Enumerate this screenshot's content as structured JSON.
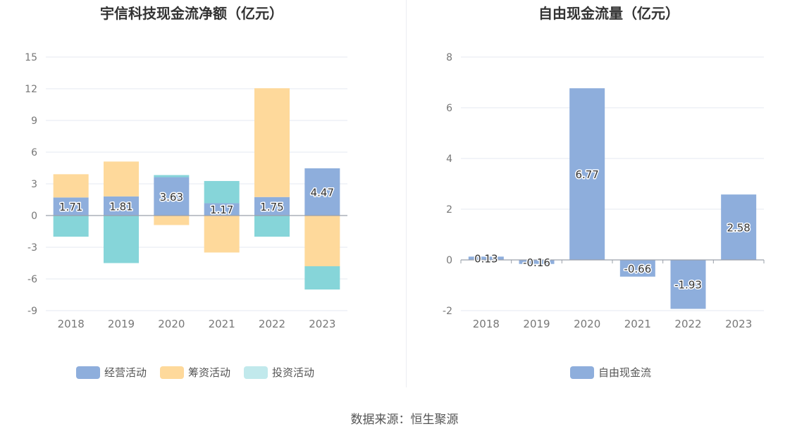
{
  "source": "数据来源：恒生聚源",
  "colors": {
    "operating": "#8eaedc",
    "financing": "#fed99b",
    "investing": "#86d5d9",
    "investing_legend": "#c1e9ec",
    "free": "#8eaedc"
  },
  "chart_data": [
    {
      "type": "bar",
      "stacked": true,
      "title": "宇信科技现金流净额（亿元）",
      "categories": [
        "2018",
        "2019",
        "2020",
        "2021",
        "2022",
        "2023"
      ],
      "ylim": [
        -9,
        15
      ],
      "yticks": [
        -9,
        -6,
        -3,
        0,
        3,
        6,
        9,
        12,
        15
      ],
      "legend_position": "bottom",
      "series": [
        {
          "name": "经营活动",
          "values": [
            1.71,
            1.81,
            3.63,
            1.17,
            1.75,
            4.47
          ]
        },
        {
          "name": "筹资活动",
          "values": [
            2.2,
            3.3,
            -0.9,
            -3.5,
            10.3,
            -4.8
          ]
        },
        {
          "name": "投资活动",
          "values": [
            -2.0,
            -4.5,
            0.2,
            2.1,
            -2.0,
            -2.2
          ]
        }
      ],
      "data_labels": [
        "1.71",
        "1.81",
        "3.63",
        "1.17",
        "1.75",
        "4.47"
      ]
    },
    {
      "type": "bar",
      "title": "自由现金流量（亿元）",
      "categories": [
        "2018",
        "2019",
        "2020",
        "2021",
        "2022",
        "2023"
      ],
      "ylim": [
        -2,
        8
      ],
      "yticks": [
        -2,
        0,
        2,
        4,
        6,
        8
      ],
      "legend_position": "bottom",
      "series": [
        {
          "name": "自由现金流",
          "values": [
            0.13,
            -0.16,
            6.77,
            -0.66,
            -1.93,
            2.58
          ]
        }
      ],
      "data_labels": [
        "0.13",
        "-0.16",
        "6.77",
        "-0.66",
        "-1.93",
        "2.58"
      ]
    }
  ]
}
